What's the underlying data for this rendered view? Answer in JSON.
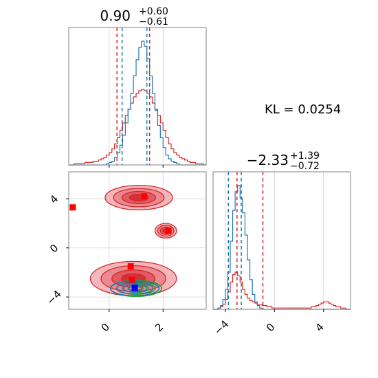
{
  "chart_data": [
    {
      "type": "histogram",
      "panel": "marginal-param-1",
      "title": {
        "main": "0.90",
        "upper": "+0.60",
        "lower": "−0.61"
      },
      "xlim": [
        -1.5,
        3.6
      ],
      "x_ticks": [
        0,
        2
      ],
      "series": [
        {
          "name": "",
          "color": "#d62728",
          "bin_start": -1.5,
          "bin_width": 0.1,
          "counts": [
            0,
            0,
            1,
            1,
            1,
            1,
            2,
            2,
            2,
            3,
            3,
            4,
            5,
            6,
            8,
            10,
            13,
            17,
            22,
            28,
            34,
            40,
            45,
            50,
            55,
            58,
            60,
            61,
            60,
            58,
            55,
            50,
            45,
            40,
            34,
            28,
            22,
            17,
            13,
            10,
            8,
            6,
            5,
            4,
            3,
            2,
            2,
            1,
            1,
            1,
            0
          ]
        },
        {
          "name": "",
          "color": "#1f77b4",
          "bin_start": -1.5,
          "bin_width": 0.1,
          "counts": [
            0,
            0,
            0,
            0,
            0,
            0,
            0,
            0,
            0,
            0,
            0,
            0,
            0,
            0,
            1,
            2,
            3,
            6,
            10,
            16,
            24,
            34,
            45,
            58,
            72,
            85,
            95,
            100,
            96,
            86,
            72,
            58,
            44,
            32,
            22,
            14,
            8,
            5,
            3,
            2,
            1,
            0,
            0,
            0,
            0,
            0,
            0,
            0,
            0,
            0,
            0
          ]
        }
      ],
      "quantile_lines": [
        {
          "color": "#d62728",
          "values": [
            0.29,
            1.5
          ]
        },
        {
          "color": "#1f77b4",
          "values": [
            0.48,
            1.4
          ]
        }
      ]
    },
    {
      "type": "contour",
      "panel": "joint",
      "xlim": [
        -1.5,
        3.6
      ],
      "ylim": [
        -5.0,
        6.2
      ],
      "x_ticks": [
        0,
        2
      ],
      "y_ticks": [
        -4,
        0,
        4
      ],
      "red_modes": [
        {
          "cx": 1.1,
          "cy": 4.1,
          "rx": 1.25,
          "ry": 1.0
        },
        {
          "cx": 2.1,
          "cy": 1.4,
          "rx": 0.4,
          "ry": 0.6
        },
        {
          "cx": 0.9,
          "cy": -2.5,
          "rx": 1.6,
          "ry": 1.4
        }
      ],
      "red_points": [
        {
          "x": -1.35,
          "y": 3.3
        },
        {
          "x": 1.3,
          "y": 4.2
        },
        {
          "x": 2.2,
          "y": 1.4
        },
        {
          "x": 0.8,
          "y": -1.5
        },
        {
          "x": 0.85,
          "y": -2.6
        }
      ],
      "blue_point": {
        "x": 0.95,
        "y": -3.25
      },
      "green_contour": {
        "cx": 1.0,
        "cy": -3.3,
        "rx": 0.95,
        "ry": 0.65
      },
      "blue_contour": {
        "cx": 0.95,
        "cy": -3.3,
        "rx": 0.9,
        "ry": 0.6
      }
    },
    {
      "type": "histogram",
      "panel": "marginal-param-2",
      "title": {
        "main": "−2.33",
        "upper": "+1.39",
        "lower": "−0.72"
      },
      "xlim": [
        -5.0,
        6.2
      ],
      "x_ticks": [
        -4,
        0,
        4
      ],
      "series": [
        {
          "name": "",
          "color": "#d62728",
          "bin_start": -5.0,
          "bin_width": 0.2,
          "counts": [
            0,
            0,
            1,
            2,
            4,
            8,
            14,
            22,
            28,
            30,
            27,
            22,
            16,
            12,
            9,
            7,
            6,
            5,
            4,
            4,
            3,
            3,
            2,
            2,
            1,
            1,
            1,
            1,
            1,
            1,
            1,
            1,
            1,
            1,
            1,
            1,
            1,
            1,
            1,
            1,
            2,
            2,
            3,
            4,
            5,
            6,
            6,
            5,
            4,
            3,
            2,
            2,
            1,
            1,
            0,
            0
          ]
        },
        {
          "name": "",
          "color": "#1f77b4",
          "bin_start": -5.0,
          "bin_width": 0.2,
          "counts": [
            0,
            0,
            1,
            3,
            8,
            16,
            30,
            55,
            80,
            95,
            100,
            90,
            78,
            60,
            40,
            24,
            12,
            6,
            3,
            1,
            0,
            0,
            0,
            0,
            0,
            0,
            0,
            0,
            0,
            0,
            0,
            0,
            0,
            0,
            0,
            0,
            0,
            0,
            0,
            0,
            0,
            0,
            0,
            0,
            0,
            0,
            0,
            0,
            0,
            0,
            0,
            0,
            0,
            0,
            0,
            0
          ]
        }
      ],
      "quantile_lines": [
        {
          "color": "#d62728",
          "values": [
            -3.05,
            -0.94
          ]
        },
        {
          "color": "#1f77b4",
          "values": [
            -3.75,
            -2.7
          ]
        }
      ]
    }
  ],
  "annotation": {
    "kl_label": "KL = 0.0254"
  }
}
